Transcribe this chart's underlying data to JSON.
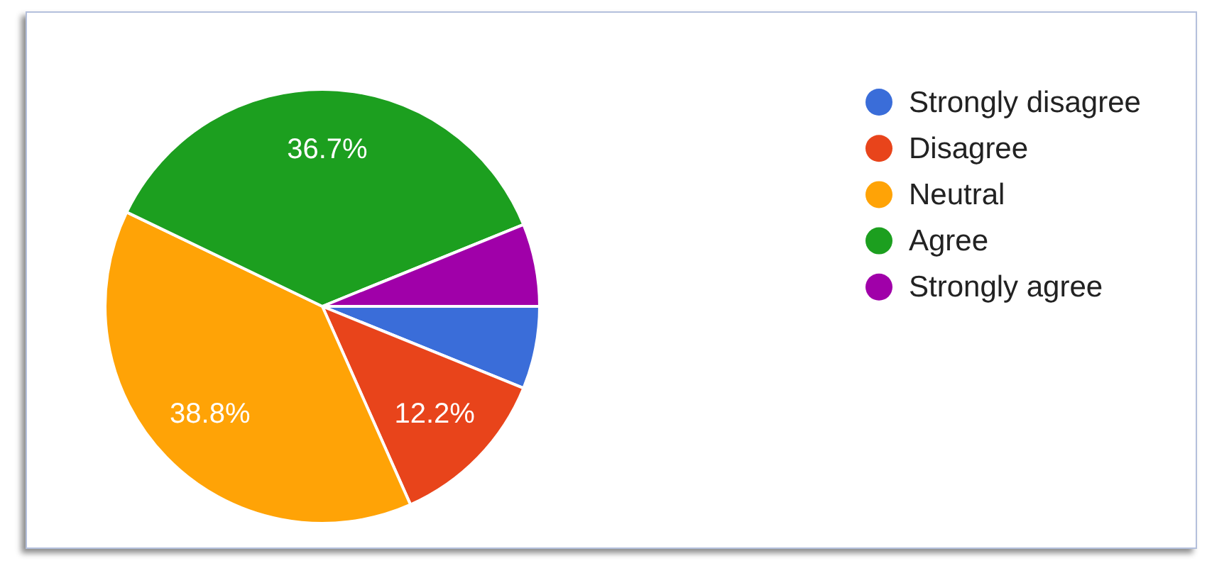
{
  "chart_data": {
    "type": "pie",
    "categories": [
      "Strongly disagree",
      "Disagree",
      "Neutral",
      "Agree",
      "Strongly agree"
    ],
    "values": [
      6.15,
      12.2,
      38.8,
      36.7,
      6.15
    ],
    "colors": [
      "#3a6dd9",
      "#e8441b",
      "#ffa306",
      "#1c9f1f",
      "#a000a9"
    ],
    "value_labels": [
      null,
      "12.2%",
      "38.8%",
      "36.7%",
      null
    ],
    "legend": "top right"
  }
}
